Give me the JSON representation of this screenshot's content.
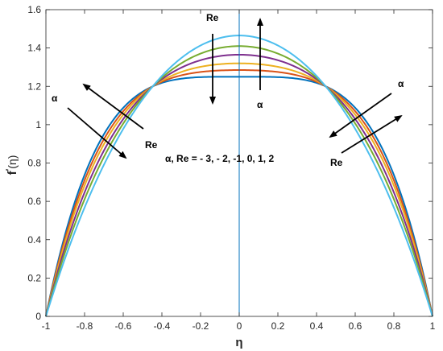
{
  "chart_data": {
    "type": "line",
    "title": "",
    "xlabel": "η",
    "ylabel_main": "f",
    "ylabel_prime": "′",
    "ylabel_arg": "(η)",
    "xlim": [
      -1,
      1
    ],
    "ylim": [
      0,
      1.6
    ],
    "xticks": [
      -1,
      -0.8,
      -0.6,
      -0.4,
      -0.2,
      0,
      0.2,
      0.4,
      0.6,
      0.8,
      1
    ],
    "yticks": [
      0,
      0.2,
      0.4,
      0.6,
      0.8,
      1,
      1.2,
      1.4,
      1.6
    ],
    "xtick_labels": [
      "-1",
      "-0.8",
      "-0.6",
      "-0.4",
      "-0.2",
      "0",
      "0.2",
      "0.4",
      "0.6",
      "0.8",
      "1"
    ],
    "ytick_labels": [
      "0",
      "0.2",
      "0.4",
      "0.6",
      "0.8",
      "1",
      "1.2",
      "1.4",
      "1.6"
    ],
    "grid": false,
    "vertical_line_x": 0,
    "vertical_line_color": "#0072BD",
    "series": [
      {
        "color": "#0072BD",
        "peak": 1.25
      },
      {
        "color": "#D95319",
        "peak": 1.285
      },
      {
        "color": "#EDB120",
        "peak": 1.32
      },
      {
        "color": "#7E2F8E",
        "peak": 1.365
      },
      {
        "color": "#77AC30",
        "peak": 1.41
      },
      {
        "color": "#4DBEEE",
        "peak": 1.465
      }
    ],
    "curve_model": "f(η) = 1.5·(1 − η²)·(1 − k + 5k·η²), k = 1 − peak/1.5",
    "annotations": {
      "center_re": "Re",
      "center_alpha": "α",
      "left_alpha": "α",
      "left_re": "Re",
      "right_alpha": "α",
      "right_re": "Re",
      "legend_text_prefix": "α",
      "legend_text_rest": ", Re = - 3, - 2, -1, 0, 1, 2"
    }
  }
}
